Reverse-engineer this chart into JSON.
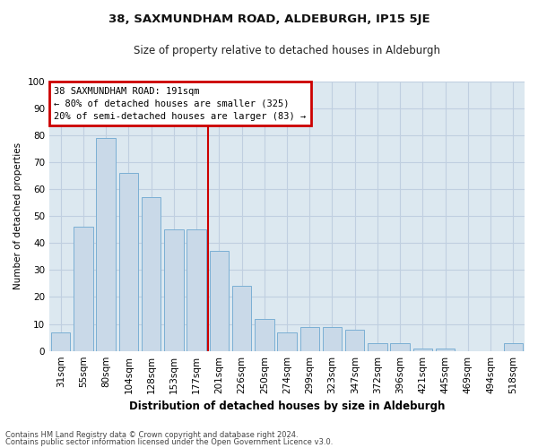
{
  "title": "38, SAXMUNDHAM ROAD, ALDEBURGH, IP15 5JE",
  "subtitle": "Size of property relative to detached houses in Aldeburgh",
  "xlabel": "Distribution of detached houses by size in Aldeburgh",
  "ylabel": "Number of detached properties",
  "categories": [
    "31sqm",
    "55sqm",
    "80sqm",
    "104sqm",
    "128sqm",
    "153sqm",
    "177sqm",
    "201sqm",
    "226sqm",
    "250sqm",
    "274sqm",
    "299sqm",
    "323sqm",
    "347sqm",
    "372sqm",
    "396sqm",
    "421sqm",
    "445sqm",
    "469sqm",
    "494sqm",
    "518sqm"
  ],
  "values": [
    7,
    46,
    79,
    66,
    57,
    45,
    45,
    37,
    24,
    12,
    7,
    9,
    9,
    8,
    3,
    3,
    1,
    1,
    0,
    0,
    3
  ],
  "bar_color": "#c9d9e8",
  "bar_edge_color": "#7bafd4",
  "grid_color": "#c0cfe0",
  "background_color": "#dce8f0",
  "fig_background": "#ffffff",
  "vline_x": 7.0,
  "vline_color": "#cc0000",
  "annotation_line1": "38 SAXMUNDHAM ROAD: 191sqm",
  "annotation_line2": "← 80% of detached houses are smaller (325)",
  "annotation_line3": "20% of semi-detached houses are larger (83) →",
  "annotation_box_edge_color": "#cc0000",
  "ylim": [
    0,
    100
  ],
  "yticks": [
    0,
    10,
    20,
    30,
    40,
    50,
    60,
    70,
    80,
    90,
    100
  ],
  "title_fontsize": 9.5,
  "subtitle_fontsize": 8.5,
  "xlabel_fontsize": 8.5,
  "ylabel_fontsize": 7.5,
  "tick_fontsize": 7.5,
  "annot_fontsize": 7.5,
  "footer1": "Contains HM Land Registry data © Crown copyright and database right 2024.",
  "footer2": "Contains public sector information licensed under the Open Government Licence v3.0.",
  "footer_fontsize": 6.0
}
